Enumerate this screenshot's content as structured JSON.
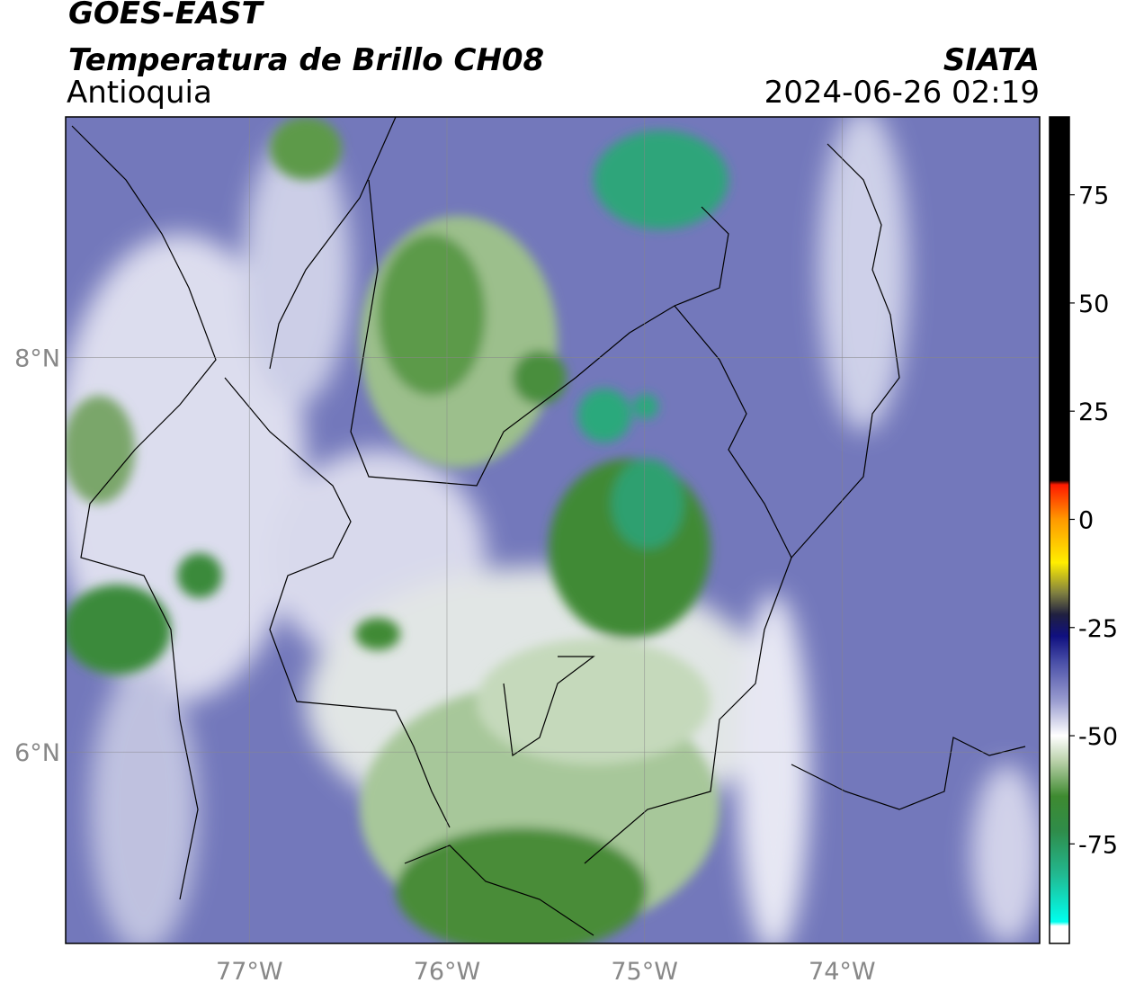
{
  "header": {
    "line1": "GOES-EAST",
    "title": "Temperatura de Brillo CH08",
    "region": "Antioquia",
    "source": "SIATA",
    "timestamp": "2024-06-26 02:19"
  },
  "map": {
    "lonlim": [
      -77.93,
      -73.0
    ],
    "latlim": [
      5.03,
      9.22
    ],
    "lonticks": [
      {
        "value": -77,
        "label": "77°W"
      },
      {
        "value": -76,
        "label": "76°W"
      },
      {
        "value": -75,
        "label": "75°W"
      },
      {
        "value": -74,
        "label": "74°W"
      }
    ],
    "latticks": [
      {
        "value": 8,
        "label": "8°N"
      },
      {
        "value": 6,
        "label": "6°N"
      }
    ],
    "grid": true
  },
  "colorbar": {
    "lim": [
      -98,
      93
    ],
    "ticks": [
      75,
      50,
      25,
      0,
      -25,
      -50,
      -75
    ],
    "stops": [
      {
        "value": 93,
        "color": "#000000"
      },
      {
        "value": 9,
        "color": "#000000"
      },
      {
        "value": 8,
        "color": "#ff1a00"
      },
      {
        "value": 0,
        "color": "#ff9900"
      },
      {
        "value": -10,
        "color": "#ffee00"
      },
      {
        "value": -17,
        "color": "#808040"
      },
      {
        "value": -22,
        "color": "#202040"
      },
      {
        "value": -27,
        "color": "#101080"
      },
      {
        "value": -33,
        "color": "#4a4fa8"
      },
      {
        "value": -42,
        "color": "#9a9dd0"
      },
      {
        "value": -50,
        "color": "#ffffff"
      },
      {
        "value": -56,
        "color": "#b8d0a8"
      },
      {
        "value": -64,
        "color": "#3e8a30"
      },
      {
        "value": -72,
        "color": "#2f8c4a"
      },
      {
        "value": -82,
        "color": "#22b890"
      },
      {
        "value": -93,
        "color": "#00ffee"
      },
      {
        "value": -94,
        "color": "#ffffff"
      },
      {
        "value": -98,
        "color": "#ffffff"
      }
    ]
  }
}
